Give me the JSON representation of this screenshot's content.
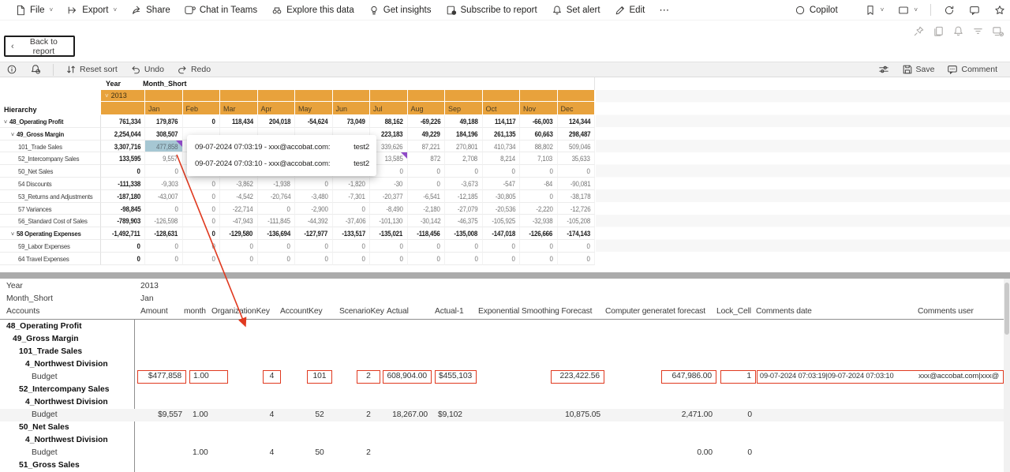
{
  "colors": {
    "accent": "#E8A23C",
    "flag": "#8F4BC7",
    "sel": "#A6C7D3",
    "red": "#E0391F",
    "bar": "#ABABAB"
  },
  "topbar": {
    "file": "File",
    "export": "Export",
    "share": "Share",
    "chat": "Chat in Teams",
    "explore": "Explore this data",
    "insights": "Get insights",
    "subscribe": "Subscribe to report",
    "set_alert": "Set alert",
    "edit": "Edit",
    "more": "⋯",
    "copilot": "Copilot"
  },
  "nav": {
    "back": "Back to report"
  },
  "toolbar": {
    "reset_sort": "Reset sort",
    "undo": "Undo",
    "redo": "Redo",
    "save": "Save",
    "comment": "Comment"
  },
  "matrix": {
    "year_label": "Year",
    "month_label": "Month_Short",
    "hierarchy_label": "Hierarchy",
    "year": "2013",
    "months": [
      "Jan",
      "Feb",
      "Mar",
      "Apr",
      "May",
      "Jun",
      "Jul",
      "Aug",
      "Sep",
      "Oct",
      "Nov",
      "Dec"
    ],
    "rows": [
      {
        "label": "48_Operating Profit",
        "level": 0,
        "bold": true,
        "expandable": true,
        "total": "761,334",
        "values": [
          "179,876",
          "0",
          "118,434",
          "204,018",
          "-54,624",
          "73,049",
          "88,162",
          "-69,226",
          "49,188",
          "114,117",
          "-66,003",
          "124,344"
        ]
      },
      {
        "label": "49_Gross Margin",
        "level": 1,
        "bold": true,
        "expandable": true,
        "total": "2,254,044",
        "values": [
          "308,507",
          "",
          "",
          "",
          "",
          "",
          "223,183",
          "49,229",
          "184,196",
          "261,135",
          "60,663",
          "298,487"
        ]
      },
      {
        "label": "101_Trade Sales",
        "level": 2,
        "total": "3,307,716",
        "selected_month": 0,
        "values": [
          "477,858",
          "",
          "",
          "",
          "",
          "",
          "339,626",
          "87,221",
          "270,801",
          "410,734",
          "88,802",
          "509,046"
        ]
      },
      {
        "label": "52_Intercompany Sales",
        "level": 2,
        "total": "133,595",
        "flag_month": 6,
        "values": [
          "9,557",
          "",
          "",
          "",
          "",
          "",
          "13,585",
          "872",
          "2,708",
          "8,214",
          "7,103",
          "35,633"
        ]
      },
      {
        "label": "50_Net Sales",
        "level": 2,
        "total": "0",
        "values": [
          "0",
          "0",
          "0",
          "0",
          "0",
          "0",
          "0",
          "0",
          "0",
          "0",
          "0",
          "0"
        ]
      },
      {
        "label": "54 Discounts",
        "level": 2,
        "total": "-111,338",
        "values": [
          "-9,303",
          "0",
          "-3,862",
          "-1,938",
          "0",
          "-1,820",
          "-30",
          "0",
          "-3,673",
          "-547",
          "-84",
          "-90,081"
        ]
      },
      {
        "label": "53_Returns and Adjustments",
        "level": 2,
        "total": "-187,180",
        "values": [
          "-43,007",
          "0",
          "-4,542",
          "-20,764",
          "-3,480",
          "-7,301",
          "-20,377",
          "-6,541",
          "-12,185",
          "-30,805",
          "0",
          "-38,178"
        ]
      },
      {
        "label": "57 Variances",
        "level": 2,
        "total": "-98,845",
        "values": [
          "0",
          "0",
          "-22,714",
          "0",
          "-2,900",
          "0",
          "-8,490",
          "-2,180",
          "-27,079",
          "-20,536",
          "-2,220",
          "-12,726"
        ]
      },
      {
        "label": "56_Standard Cost of Sales",
        "level": 2,
        "total": "-789,903",
        "values": [
          "-126,598",
          "0",
          "-47,943",
          "-111,845",
          "-44,392",
          "-37,406",
          "-101,130",
          "-30,142",
          "-46,375",
          "-105,925",
          "-32,938",
          "-105,208"
        ]
      },
      {
        "label": "58 Operating Expenses",
        "level": 1,
        "bold": true,
        "expandable": true,
        "total": "-1,492,711",
        "values": [
          "-128,631",
          "0",
          "-129,580",
          "-136,694",
          "-127,977",
          "-133,517",
          "-135,021",
          "-118,456",
          "-135,008",
          "-147,018",
          "-126,666",
          "-174,143"
        ]
      },
      {
        "label": "59_Labor Expenses",
        "level": 2,
        "total": "0",
        "values": [
          "0",
          "0",
          "0",
          "0",
          "0",
          "0",
          "0",
          "0",
          "0",
          "0",
          "0",
          "0"
        ]
      },
      {
        "label": "64 Travel Expenses",
        "level": 2,
        "total": "0",
        "values": [
          "0",
          "0",
          "0",
          "0",
          "0",
          "0",
          "0",
          "0",
          "0",
          "0",
          "0",
          "0"
        ]
      }
    ]
  },
  "tooltip": {
    "lines": [
      {
        "text": "09-07-2024 07:03:19 - xxx@accobat.com:",
        "value": "test2"
      },
      {
        "text": "09-07-2024 07:03:10 - xxx@accobat.com:",
        "value": "test2"
      }
    ]
  },
  "detail": {
    "filters": [
      {
        "label": "Year",
        "value": "2013"
      },
      {
        "label": "Month_Short",
        "value": "Jan"
      }
    ],
    "accounts_label": "Accounts",
    "columns": [
      "Amount",
      "month",
      "OrganizationKey",
      "AccountKey",
      "ScenarioKey",
      "Actual",
      "Actual-1",
      "Exponential Smoothing Forecast",
      "Computer generatet forecast",
      "Lock_Cell",
      "Comments date",
      "Comments user"
    ],
    "rows": [
      {
        "label": "48_Operating Profit",
        "level": 0,
        "bold": true
      },
      {
        "label": "49_Gross Margin",
        "level": 1,
        "bold": true
      },
      {
        "label": "101_Trade Sales",
        "level": 2,
        "bold": true
      },
      {
        "label": "4_Northwest Division",
        "level": 3,
        "bold": true
      },
      {
        "label": "Budget",
        "level": 4,
        "boxed": true,
        "values": {
          "amount": "$477,858",
          "month": "1.00",
          "org": "4",
          "acct": "101",
          "scen": "2",
          "actual": "608,904.00",
          "actual1": "$455,103",
          "esf": "223,422.56",
          "cgf": "647,986.00",
          "lock": "1",
          "comments": "09-07-2024 07:03:19|09-07-2024 07:03:10",
          "user": "xxx@accobat.com|xxx@"
        }
      },
      {
        "label": "52_Intercompany Sales",
        "level": 2,
        "bold": true
      },
      {
        "label": "4_Northwest Division",
        "level": 3,
        "bold": true
      },
      {
        "label": "Budget",
        "level": 4,
        "shaded": true,
        "values": {
          "amount": "$9,557",
          "month": "1.00",
          "org": "4",
          "acct": "52",
          "scen": "2",
          "actual": "18,267.00",
          "actual1": "$9,102",
          "esf": "10,875.05",
          "cgf": "2,471.00",
          "lock": "0"
        }
      },
      {
        "label": "50_Net Sales",
        "level": 2,
        "bold": true
      },
      {
        "label": "4_Northwest Division",
        "level": 3,
        "bold": true
      },
      {
        "label": "Budget",
        "level": 4,
        "values": {
          "month": "1.00",
          "org": "4",
          "acct": "50",
          "scen": "2",
          "cgf": "0.00",
          "lock": "0"
        }
      },
      {
        "label": "51_Gross Sales",
        "level": 2,
        "bold": true
      }
    ]
  }
}
